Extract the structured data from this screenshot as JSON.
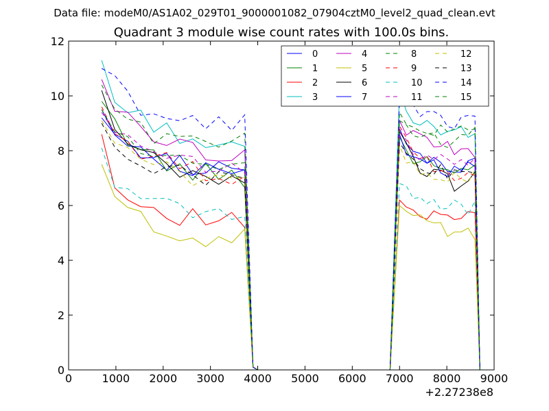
{
  "header": {
    "data_file": "Data file: modeM0/AS1A02_029T01_9000001082_07904cztM0_level2_quad_clean.evt"
  },
  "chart_data": {
    "type": "line",
    "title": "Quadrant 3 module wise count rates with 100.0s bins.",
    "xlabel": "",
    "ylabel": "",
    "x_offset_label": "+2.27238e8",
    "xlim": [
      0,
      9000
    ],
    "ylim": [
      0,
      12
    ],
    "x_ticks": [
      0,
      1000,
      2000,
      3000,
      4000,
      5000,
      6000,
      7000,
      8000,
      9000
    ],
    "y_ticks": [
      0,
      2,
      4,
      6,
      8,
      10,
      12
    ],
    "x_tick_labels": [
      "0",
      "1000",
      "2000",
      "3000",
      "4000",
      "5000",
      "6000",
      "7000",
      "8000",
      "9000"
    ],
    "y_tick_labels": [
      "0",
      "2",
      "4",
      "6",
      "8",
      "10",
      "12"
    ],
    "grid": false,
    "legend_position": "top-right",
    "legend_columns": 4,
    "series": [
      {
        "name": "0",
        "color": "#0000ff",
        "dash": "solid",
        "a": [
          9.5,
          8.8,
          8.5,
          8.3,
          7.9,
          7.6,
          7.5,
          7.4,
          7.3,
          7.3,
          7.2,
          7.1
        ],
        "b": [
          8.8,
          8.2,
          7.9,
          7.7,
          7.6,
          7.5,
          7.5,
          7.4,
          7.3,
          7.3,
          7.4,
          7.5
        ]
      },
      {
        "name": "1",
        "color": "#008000",
        "dash": "solid",
        "a": [
          9.8,
          9.0,
          8.5,
          8.1,
          7.8,
          7.5,
          7.3,
          7.2,
          7.2,
          7.1,
          7.1,
          7.0
        ],
        "b": [
          8.5,
          8.1,
          7.8,
          7.6,
          7.5,
          7.4,
          7.3,
          7.3,
          7.2,
          7.2,
          7.2,
          7.2
        ]
      },
      {
        "name": "2",
        "color": "#ff0000",
        "dash": "solid",
        "a": [
          8.6,
          6.6,
          6.3,
          6.1,
          5.9,
          5.8,
          5.6,
          5.6,
          5.5,
          5.5,
          5.4,
          5.4
        ],
        "b": [
          6.2,
          6.0,
          5.9,
          5.8,
          5.8,
          5.7,
          5.7,
          5.7,
          5.6,
          5.6,
          5.6,
          5.6
        ]
      },
      {
        "name": "3",
        "color": "#00bfbf",
        "dash": "solid",
        "a": [
          11.3,
          9.8,
          9.5,
          9.2,
          9.0,
          8.8,
          8.6,
          8.4,
          8.3,
          8.2,
          8.1,
          8.0
        ],
        "b": [
          10.2,
          9.4,
          9.2,
          9.0,
          8.9,
          8.8,
          8.8,
          8.7,
          8.6,
          8.6,
          8.6,
          8.5
        ]
      },
      {
        "name": "4",
        "color": "#bf00bf",
        "dash": "solid",
        "a": [
          10.6,
          9.6,
          9.1,
          8.8,
          8.6,
          8.4,
          8.2,
          8.1,
          8.0,
          7.9,
          7.8,
          7.8
        ],
        "b": [
          9.1,
          8.8,
          8.6,
          8.5,
          8.4,
          8.3,
          8.3,
          8.2,
          8.1,
          8.0,
          8.0,
          7.9
        ]
      },
      {
        "name": "5",
        "color": "#bfbf00",
        "dash": "solid",
        "a": [
          7.5,
          6.1,
          5.9,
          5.5,
          5.2,
          5.1,
          5.0,
          4.9,
          4.8,
          4.8,
          4.8,
          4.8
        ],
        "b": [
          6.0,
          5.7,
          5.5,
          5.4,
          5.3,
          5.2,
          5.1,
          5.0,
          5.0,
          4.9,
          4.9,
          4.8
        ]
      },
      {
        "name": "6",
        "color": "#000000",
        "dash": "solid",
        "a": [
          10.2,
          8.6,
          8.2,
          7.9,
          7.6,
          7.4,
          7.2,
          7.1,
          7.0,
          6.9,
          6.9,
          6.8
        ],
        "b": [
          8.7,
          8.0,
          7.6,
          7.4,
          7.2,
          7.1,
          7.0,
          6.9,
          6.8,
          6.8,
          6.9,
          7.0
        ]
      },
      {
        "name": "7",
        "color": "#0000ff",
        "dash": "solid",
        "a": [
          9.2,
          8.6,
          8.3,
          8.0,
          7.8,
          7.6,
          7.5,
          7.4,
          7.3,
          7.3,
          7.2,
          7.2
        ],
        "b": [
          8.6,
          8.0,
          7.8,
          7.6,
          7.5,
          7.4,
          7.4,
          7.3,
          7.3,
          7.3,
          7.3,
          7.4
        ]
      },
      {
        "name": "8",
        "color": "#008000",
        "dash": "dashed",
        "a": [
          10.4,
          9.5,
          9.1,
          8.8,
          8.6,
          8.5,
          8.4,
          8.3,
          8.3,
          8.2,
          8.2,
          8.3
        ],
        "b": [
          9.4,
          9.1,
          8.9,
          8.8,
          8.8,
          8.7,
          8.7,
          8.7,
          8.7,
          8.7,
          8.8,
          8.9
        ]
      },
      {
        "name": "9",
        "color": "#ff0000",
        "dash": "dashed",
        "a": [
          9.6,
          8.6,
          8.3,
          8.0,
          7.8,
          7.6,
          7.4,
          7.3,
          7.2,
          7.1,
          7.1,
          7.0
        ],
        "b": [
          8.9,
          8.3,
          8.0,
          7.8,
          7.6,
          7.5,
          7.4,
          7.3,
          7.2,
          7.2,
          7.1,
          7.1
        ]
      },
      {
        "name": "10",
        "color": "#00bfbf",
        "dash": "dashed",
        "a": [
          8.1,
          7.0,
          6.7,
          6.4,
          6.2,
          6.0,
          5.9,
          5.8,
          5.7,
          5.7,
          5.6,
          5.6
        ],
        "b": [
          6.8,
          6.5,
          6.3,
          6.2,
          6.1,
          6.0,
          6.0,
          5.9,
          5.9,
          5.9,
          5.9,
          5.9
        ]
      },
      {
        "name": "11",
        "color": "#bf00bf",
        "dash": "dashed",
        "a": [
          9.4,
          8.6,
          8.3,
          8.0,
          7.8,
          7.7,
          7.6,
          7.5,
          7.4,
          7.4,
          7.3,
          7.3
        ],
        "b": [
          8.7,
          8.3,
          8.1,
          7.9,
          7.8,
          7.7,
          7.7,
          7.6,
          7.6,
          7.5,
          7.5,
          7.5
        ]
      },
      {
        "name": "12",
        "color": "#bfbf00",
        "dash": "dashed",
        "a": [
          9.1,
          8.2,
          7.9,
          7.6,
          7.4,
          7.3,
          7.1,
          7.0,
          7.0,
          6.9,
          6.9,
          6.8
        ],
        "b": [
          8.2,
          7.8,
          7.6,
          7.4,
          7.3,
          7.2,
          7.1,
          7.1,
          7.0,
          7.0,
          7.0,
          7.0
        ]
      },
      {
        "name": "13",
        "color": "#000000",
        "dash": "dashed",
        "a": [
          9.0,
          8.2,
          7.9,
          7.7,
          7.5,
          7.4,
          7.2,
          7.1,
          7.0,
          7.0,
          6.9,
          6.9
        ],
        "b": [
          8.3,
          7.9,
          7.7,
          7.5,
          7.4,
          7.3,
          7.2,
          7.1,
          7.1,
          7.0,
          7.0,
          7.0
        ]
      },
      {
        "name": "14",
        "color": "#0000ff",
        "dash": "dashed",
        "a": [
          11.0,
          10.5,
          10.0,
          9.6,
          9.4,
          9.3,
          9.1,
          9.0,
          9.0,
          8.9,
          8.9,
          9.1
        ],
        "b": [
          9.9,
          9.6,
          9.4,
          9.3,
          9.2,
          9.2,
          9.1,
          9.1,
          9.0,
          9.0,
          9.0,
          9.1
        ]
      },
      {
        "name": "15",
        "color": "#008000",
        "dash": "dashed",
        "a": [
          9.5,
          8.8,
          8.4,
          8.1,
          7.9,
          7.7,
          7.6,
          7.5,
          7.4,
          7.4,
          7.3,
          7.3
        ],
        "b": [
          9.1,
          8.8,
          8.7,
          8.6,
          8.5,
          8.5,
          8.4,
          8.4,
          8.4,
          8.4,
          8.5,
          8.6
        ]
      }
    ]
  }
}
